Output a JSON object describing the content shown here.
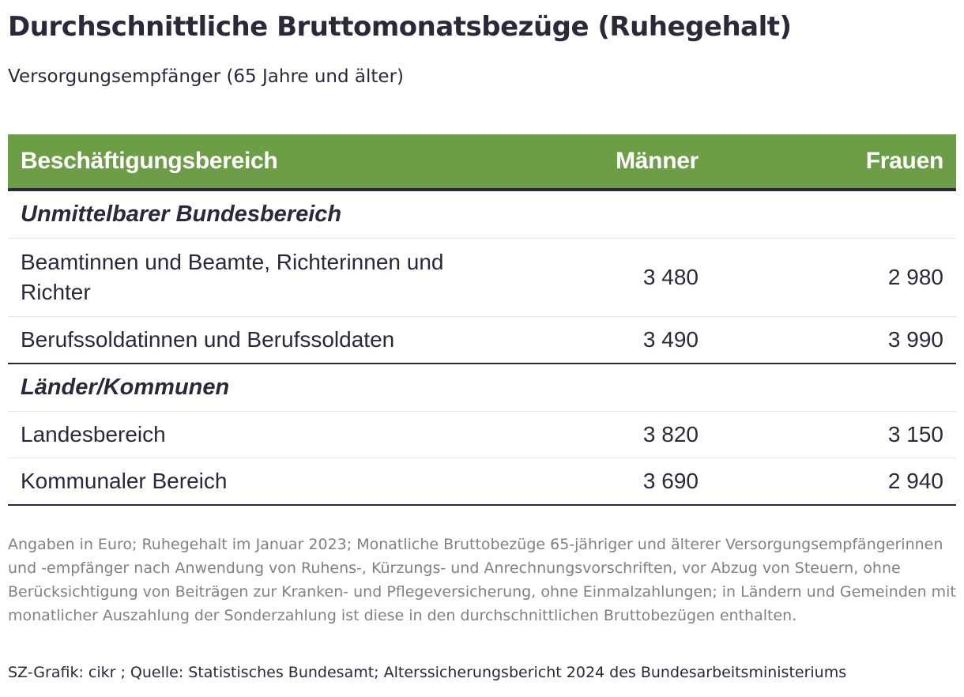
{
  "title": "Durchschnittliche Bruttomonatsbezüge (Ruhegehalt)",
  "subtitle": "Versorgungsempfänger (65 Jahre und älter)",
  "table": {
    "headers": [
      "Beschäftigungsbereich",
      "Männer",
      "Frauen"
    ],
    "groups": [
      {
        "label": "Unmittelbarer Bundesbereich",
        "rows": [
          {
            "label": "Beamtinnen und Beamte, Richterinnen und Richter",
            "men": "3 480",
            "women": "2 980"
          },
          {
            "label": "Berufssoldatinnen und Berufssoldaten",
            "men": "3 490",
            "women": "3 990"
          }
        ]
      },
      {
        "label": "Länder/Kommunen",
        "rows": [
          {
            "label": "Landesbereich",
            "men": "3 820",
            "women": "3 150"
          },
          {
            "label": "Kommunaler Bereich",
            "men": "3 690",
            "women": "2 940"
          }
        ]
      }
    ]
  },
  "colors": {
    "header_bg": "#6d9e47",
    "text": "#29293a",
    "note_text": "#818181"
  },
  "note": "Angaben in Euro; Ruhegehalt im Januar 2023; Monatliche Bruttobezüge 65-jähriger und älterer Versorgungsempfängerinnen und -empfänger nach Anwendung von Ruhens-, Kürzungs- und Anrechnungsvorschriften, vor Abzug von Steuern, ohne Berücksichtigung von Beiträgen zur Kranken- und Pflegeversicherung, ohne Einmalzahlungen; in Ländern und Gemeinden mit monatlicher Auszahlung der Sonderzahlung ist diese in den durchschnittlichen Bruttobezügen enthalten.",
  "source": "SZ-Grafik: cikr ; Quelle: Statistisches Bundesamt; Alterssicherungsbericht 2024 des Bundesarbeitsministeriums"
}
